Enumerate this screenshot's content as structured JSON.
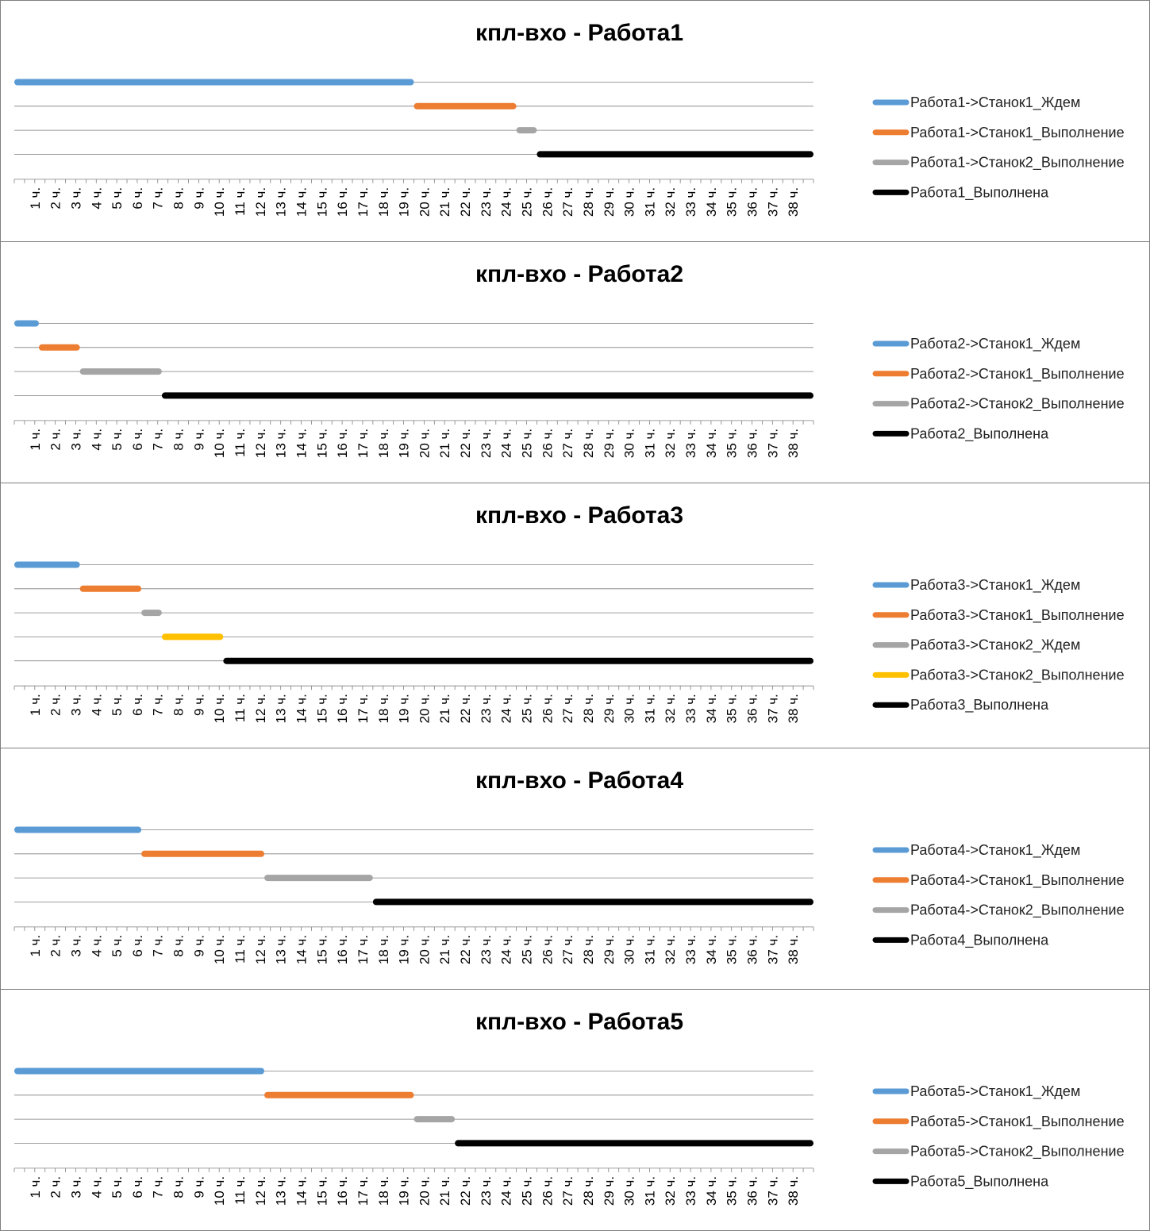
{
  "colors": {
    "blue": "#5b9bd5",
    "orange": "#ed7d31",
    "gray": "#a5a5a5",
    "yellow": "#ffc000",
    "black": "#000000",
    "grid": "#7f7f7f"
  },
  "tick_suffix": " ч.",
  "chart_data": [
    {
      "type": "gantt",
      "title": "кпл-вхо - Работа1",
      "x_unit": "ч.",
      "xlim": [
        0,
        39
      ],
      "x_ticks": [
        1,
        2,
        3,
        4,
        5,
        6,
        7,
        8,
        9,
        10,
        11,
        12,
        13,
        14,
        15,
        16,
        17,
        18,
        19,
        20,
        21,
        22,
        23,
        24,
        25,
        26,
        27,
        28,
        29,
        30,
        31,
        32,
        33,
        34,
        35,
        36,
        37,
        38
      ],
      "legend_position": "right",
      "series": [
        {
          "name": "Работа1->Станок1_Ждем",
          "color": "blue",
          "start": 0,
          "end": 19.5
        },
        {
          "name": "Работа1->Станок1_Выполнение",
          "color": "orange",
          "start": 19.5,
          "end": 24.5
        },
        {
          "name": "Работа1->Станок2_Выполнение",
          "color": "gray",
          "start": 24.5,
          "end": 25.5
        },
        {
          "name": "Работа1_Выполнена",
          "color": "black",
          "start": 25.5,
          "end": 39
        }
      ]
    },
    {
      "type": "gantt",
      "title": "кпл-вхо - Работа2",
      "x_unit": "ч.",
      "xlim": [
        0,
        39
      ],
      "x_ticks": [
        1,
        2,
        3,
        4,
        5,
        6,
        7,
        8,
        9,
        10,
        11,
        12,
        13,
        14,
        15,
        16,
        17,
        18,
        19,
        20,
        21,
        22,
        23,
        24,
        25,
        26,
        27,
        28,
        29,
        30,
        31,
        32,
        33,
        34,
        35,
        36,
        37,
        38
      ],
      "legend_position": "right",
      "series": [
        {
          "name": "Работа2->Станок1_Ждем",
          "color": "blue",
          "start": 0,
          "end": 1.2
        },
        {
          "name": "Работа2->Станок1_Выполнение",
          "color": "orange",
          "start": 1.2,
          "end": 3.2
        },
        {
          "name": "Работа2->Станок2_Выполнение",
          "color": "gray",
          "start": 3.2,
          "end": 7.2
        },
        {
          "name": "Работа2_Выполнена",
          "color": "black",
          "start": 7.2,
          "end": 39
        }
      ]
    },
    {
      "type": "gantt",
      "title": "кпл-вхо - Работа3",
      "x_unit": "ч.",
      "xlim": [
        0,
        39
      ],
      "x_ticks": [
        1,
        2,
        3,
        4,
        5,
        6,
        7,
        8,
        9,
        10,
        11,
        12,
        13,
        14,
        15,
        16,
        17,
        18,
        19,
        20,
        21,
        22,
        23,
        24,
        25,
        26,
        27,
        28,
        29,
        30,
        31,
        32,
        33,
        34,
        35,
        36,
        37,
        38
      ],
      "legend_position": "right",
      "series": [
        {
          "name": "Работа3->Станок1_Ждем",
          "color": "blue",
          "start": 0,
          "end": 3.2
        },
        {
          "name": "Работа3->Станок1_Выполнение",
          "color": "orange",
          "start": 3.2,
          "end": 6.2
        },
        {
          "name": "Работа3->Станок2_Ждем",
          "color": "gray",
          "start": 6.2,
          "end": 7.2
        },
        {
          "name": "Работа3->Станок2_Выполнение",
          "color": "yellow",
          "start": 7.2,
          "end": 10.2
        },
        {
          "name": "Работа3_Выполнена",
          "color": "black",
          "start": 10.2,
          "end": 39
        }
      ]
    },
    {
      "type": "gantt",
      "title": "кпл-вхо - Работа4",
      "x_unit": "ч.",
      "xlim": [
        0,
        39
      ],
      "x_ticks": [
        1,
        2,
        3,
        4,
        5,
        6,
        7,
        8,
        9,
        10,
        11,
        12,
        13,
        14,
        15,
        16,
        17,
        18,
        19,
        20,
        21,
        22,
        23,
        24,
        25,
        26,
        27,
        28,
        29,
        30,
        31,
        32,
        33,
        34,
        35,
        36,
        37,
        38
      ],
      "legend_position": "right",
      "series": [
        {
          "name": "Работа4->Станок1_Ждем",
          "color": "blue",
          "start": 0,
          "end": 6.2
        },
        {
          "name": "Работа4->Станок1_Выполнение",
          "color": "orange",
          "start": 6.2,
          "end": 12.2
        },
        {
          "name": "Работа4->Станок2_Выполнение",
          "color": "gray",
          "start": 12.2,
          "end": 17.5
        },
        {
          "name": "Работа4_Выполнена",
          "color": "black",
          "start": 17.5,
          "end": 39
        }
      ]
    },
    {
      "type": "gantt",
      "title": "кпл-вхо - Работа5",
      "x_unit": "ч.",
      "xlim": [
        0,
        39
      ],
      "x_ticks": [
        1,
        2,
        3,
        4,
        5,
        6,
        7,
        8,
        9,
        10,
        11,
        12,
        13,
        14,
        15,
        16,
        17,
        18,
        19,
        20,
        21,
        22,
        23,
        24,
        25,
        26,
        27,
        28,
        29,
        30,
        31,
        32,
        33,
        34,
        35,
        36,
        37,
        38
      ],
      "legend_position": "right",
      "series": [
        {
          "name": "Работа5->Станок1_Ждем",
          "color": "blue",
          "start": 0,
          "end": 12.2
        },
        {
          "name": "Работа5->Станок1_Выполнение",
          "color": "orange",
          "start": 12.2,
          "end": 19.5
        },
        {
          "name": "Работа5->Станок2_Выполнение",
          "color": "gray",
          "start": 19.5,
          "end": 21.5
        },
        {
          "name": "Работа5_Выполнена",
          "color": "black",
          "start": 21.5,
          "end": 39
        }
      ]
    }
  ]
}
